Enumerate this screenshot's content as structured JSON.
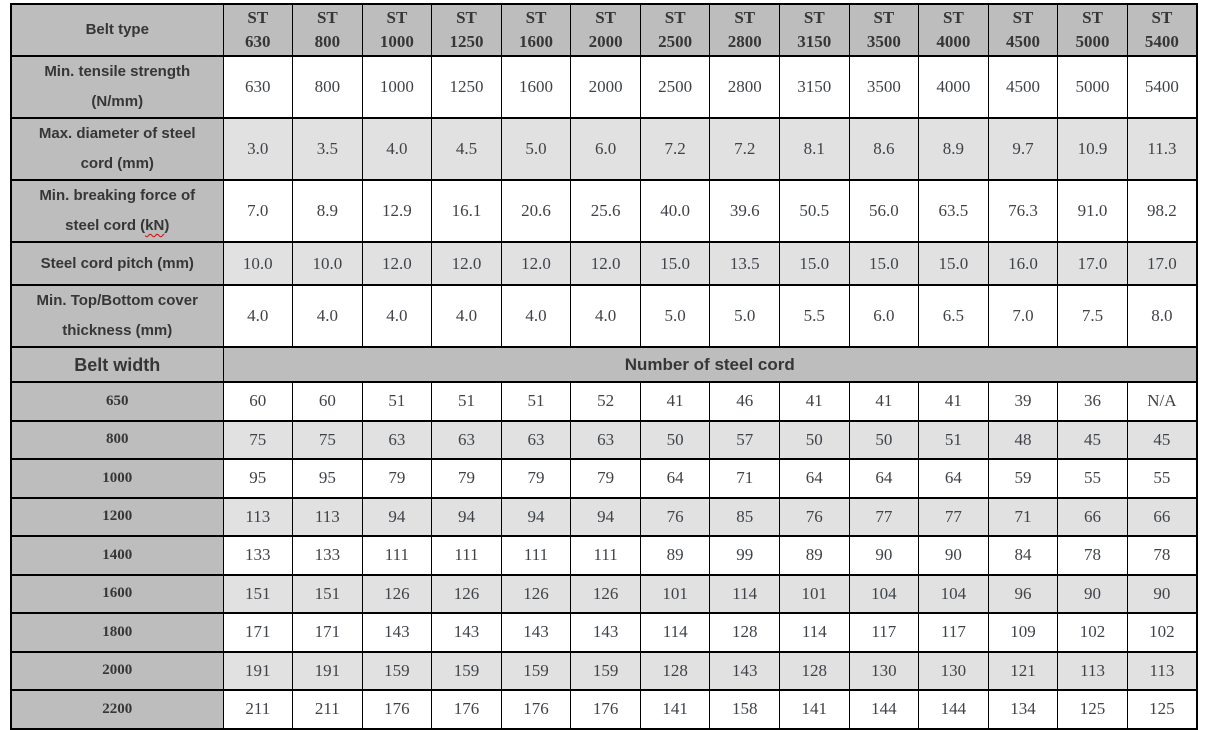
{
  "styles": {
    "header_bg": "#bdbdbd",
    "shaded_row_bg": "#e1e1e1",
    "plain_row_bg": "#ffffff",
    "border_color": "#000000",
    "label_text_color": "#363636",
    "value_text_color": "#3f4348",
    "spellcheck_underline_color": "#dd0000"
  },
  "chart_data": {
    "type": "table",
    "corner_header": "Belt type",
    "column_prefix": "ST",
    "column_values": [
      "630",
      "800",
      "1000",
      "1250",
      "1600",
      "2000",
      "2500",
      "2800",
      "3150",
      "3500",
      "4000",
      "4500",
      "5000",
      "5400"
    ],
    "spec_rows": [
      {
        "label": "Min. tensile strength (N/mm)",
        "label_lines": [
          "Min. tensile strength",
          "(N/mm)"
        ],
        "values": [
          "630",
          "800",
          "1000",
          "1250",
          "1600",
          "2000",
          "2500",
          "2800",
          "3150",
          "3500",
          "4000",
          "4500",
          "5000",
          "5400"
        ],
        "shaded": false
      },
      {
        "label": "Max. diameter of steel cord (mm)",
        "label_lines": [
          "Max. diameter of steel",
          "cord (mm)"
        ],
        "values": [
          "3.0",
          "3.5",
          "4.0",
          "4.5",
          "5.0",
          "6.0",
          "7.2",
          "7.2",
          "8.1",
          "8.6",
          "8.9",
          "9.7",
          "10.9",
          "11.3"
        ],
        "shaded": true
      },
      {
        "label": "Min. breaking force of steel cord (kN)",
        "label_lines": [
          "Min. breaking force of",
          {
            "pre": "steel cord (",
            "squiggle": "kN",
            "post": ")"
          }
        ],
        "values": [
          "7.0",
          "8.9",
          "12.9",
          "16.1",
          "20.6",
          "25.6",
          "40.0",
          "39.6",
          "50.5",
          "56.0",
          "63.5",
          "76.3",
          "91.0",
          "98.2"
        ],
        "shaded": false
      },
      {
        "label": "Steel cord pitch (mm)",
        "label_lines": [
          "Steel cord pitch (mm)"
        ],
        "values": [
          "10.0",
          "10.0",
          "12.0",
          "12.0",
          "12.0",
          "12.0",
          "15.0",
          "13.5",
          "15.0",
          "15.0",
          "15.0",
          "16.0",
          "17.0",
          "17.0"
        ],
        "shaded": true
      },
      {
        "label": "Min. Top/Bottom cover thickness (mm)",
        "label_lines": [
          "Min. Top/Bottom cover",
          "thickness (mm)"
        ],
        "values": [
          "4.0",
          "4.0",
          "4.0",
          "4.0",
          "4.0",
          "4.0",
          "5.0",
          "5.0",
          "5.5",
          "6.0",
          "6.5",
          "7.0",
          "7.5",
          "8.0"
        ],
        "shaded": false
      }
    ],
    "band": {
      "left_label": "Belt width",
      "right_label": "Number of steel cord"
    },
    "width_rows": [
      {
        "belt_width": "650",
        "values": [
          "60",
          "60",
          "51",
          "51",
          "51",
          "52",
          "41",
          "46",
          "41",
          "41",
          "41",
          "39",
          "36",
          "N/A"
        ],
        "shaded": false
      },
      {
        "belt_width": "800",
        "values": [
          "75",
          "75",
          "63",
          "63",
          "63",
          "63",
          "50",
          "57",
          "50",
          "50",
          "51",
          "48",
          "45",
          "45"
        ],
        "shaded": true
      },
      {
        "belt_width": "1000",
        "values": [
          "95",
          "95",
          "79",
          "79",
          "79",
          "79",
          "64",
          "71",
          "64",
          "64",
          "64",
          "59",
          "55",
          "55"
        ],
        "shaded": false
      },
      {
        "belt_width": "1200",
        "values": [
          "113",
          "113",
          "94",
          "94",
          "94",
          "94",
          "76",
          "85",
          "76",
          "77",
          "77",
          "71",
          "66",
          "66"
        ],
        "shaded": true
      },
      {
        "belt_width": "1400",
        "values": [
          "133",
          "133",
          "111",
          "111",
          "111",
          "111",
          "89",
          "99",
          "89",
          "90",
          "90",
          "84",
          "78",
          "78"
        ],
        "shaded": false
      },
      {
        "belt_width": "1600",
        "values": [
          "151",
          "151",
          "126",
          "126",
          "126",
          "126",
          "101",
          "114",
          "101",
          "104",
          "104",
          "96",
          "90",
          "90"
        ],
        "shaded": true
      },
      {
        "belt_width": "1800",
        "values": [
          "171",
          "171",
          "143",
          "143",
          "143",
          "143",
          "114",
          "128",
          "114",
          "117",
          "117",
          "109",
          "102",
          "102"
        ],
        "shaded": false
      },
      {
        "belt_width": "2000",
        "values": [
          "191",
          "191",
          "159",
          "159",
          "159",
          "159",
          "128",
          "143",
          "128",
          "130",
          "130",
          "121",
          "113",
          "113"
        ],
        "shaded": true
      },
      {
        "belt_width": "2200",
        "values": [
          "211",
          "211",
          "176",
          "176",
          "176",
          "176",
          "141",
          "158",
          "141",
          "144",
          "144",
          "134",
          "125",
          "125"
        ],
        "shaded": false
      }
    ]
  }
}
